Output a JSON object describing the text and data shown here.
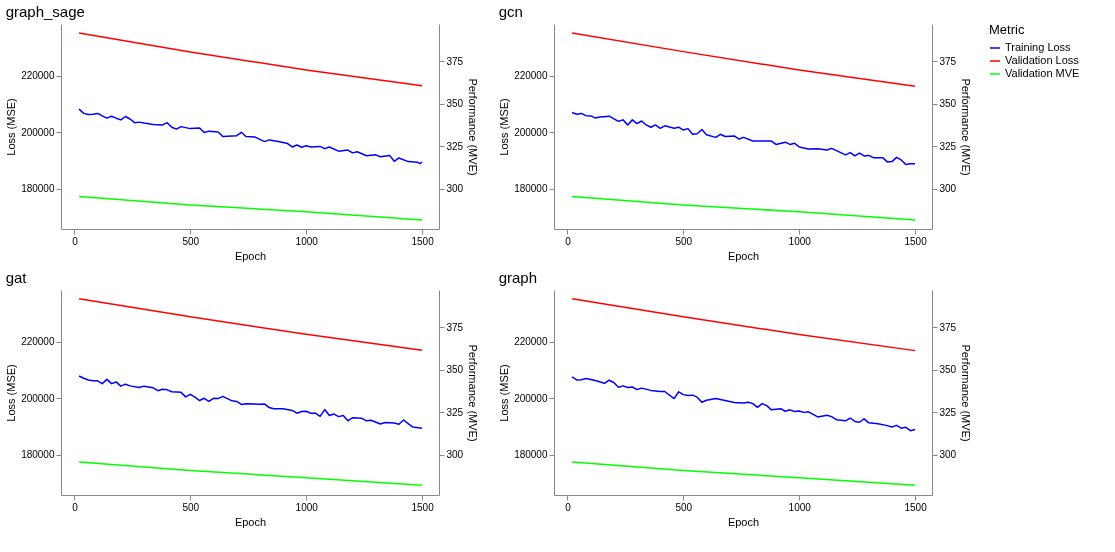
{
  "chart_data": [
    {
      "type": "line",
      "title": "graph_sage",
      "xlabel": "Epoch",
      "ylabel": "Loss (MSE)",
      "y2label": "Performance (MVE)",
      "legend_title": "Metric",
      "legend": "right",
      "grid": false,
      "xlim": [
        -58,
        1573
      ],
      "ylim": [
        165700,
        238400
      ],
      "y2lim": [
        276.2,
        397.0
      ],
      "xticks": [
        0,
        500,
        1000,
        1500
      ],
      "yticks": [
        180000,
        200000,
        220000
      ],
      "y2ticks": [
        300,
        325,
        350,
        375
      ],
      "series": [
        {
          "name": "Training Loss",
          "color": "#0000ff",
          "x": [
            20,
            40,
            60,
            80,
            100,
            120,
            140,
            160,
            180,
            200,
            220,
            240,
            260,
            280,
            300,
            340,
            380,
            400,
            420,
            440,
            460,
            500,
            540,
            560,
            580,
            620,
            640,
            680,
            700,
            720,
            740,
            780,
            820,
            840,
            880,
            920,
            940,
            960,
            980,
            1000,
            1020,
            1060,
            1080,
            1100,
            1140,
            1180,
            1200,
            1220,
            1260,
            1300,
            1320,
            1360,
            1380,
            1400,
            1440,
            1480,
            1490,
            1500
          ],
          "values": [
            208200,
            206700,
            206300,
            206400,
            206700,
            205800,
            205000,
            205700,
            205000,
            204400,
            205600,
            204700,
            203400,
            203600,
            203300,
            202800,
            202600,
            203400,
            201800,
            201100,
            202000,
            201300,
            201500,
            199900,
            200400,
            200100,
            198500,
            198700,
            198800,
            200000,
            198500,
            198300,
            196700,
            197300,
            196700,
            196000,
            194800,
            195500,
            194700,
            195200,
            194800,
            195000,
            194200,
            194800,
            193300,
            193700,
            192700,
            193100,
            191700,
            192000,
            191300,
            191800,
            189700,
            190900,
            189600,
            189400,
            188900,
            189400
          ]
        },
        {
          "name": "Validation Loss",
          "color": "#ff0000",
          "x": [
            20,
            500,
            1000,
            1500
          ],
          "values": [
            235200,
            228500,
            222100,
            216500
          ]
        },
        {
          "name": "Validation MVE",
          "color": "#00ff00",
          "axis": "y2",
          "x": [
            20,
            500,
            1000,
            1500
          ],
          "values": [
            295.3,
            290.4,
            286.3,
            281.5
          ]
        }
      ]
    },
    {
      "type": "line",
      "title": "gcn",
      "xlabel": "Epoch",
      "ylabel": "Loss (MSE)",
      "y2label": "Performance (MVE)",
      "grid": false,
      "xlim": [
        -58,
        1573
      ],
      "ylim": [
        165700,
        238400
      ],
      "y2lim": [
        276.2,
        397.0
      ],
      "xticks": [
        0,
        500,
        1000,
        1500
      ],
      "yticks": [
        180000,
        200000,
        220000
      ],
      "y2ticks": [
        300,
        325,
        350,
        375
      ],
      "series": [
        {
          "color": "#0000ff",
          "x": [
            20,
            40,
            60,
            80,
            100,
            120,
            140,
            180,
            220,
            240,
            260,
            280,
            300,
            320,
            340,
            360,
            380,
            400,
            420,
            460,
            480,
            500,
            520,
            540,
            560,
            580,
            600,
            640,
            660,
            680,
            720,
            740,
            760,
            800,
            880,
            900,
            940,
            960,
            980,
            1000,
            1040,
            1080,
            1120,
            1140,
            1200,
            1220,
            1240,
            1260,
            1280,
            1300,
            1320,
            1360,
            1380,
            1400,
            1420,
            1440,
            1460,
            1480,
            1500
          ],
          "values": [
            207000,
            206400,
            206700,
            205900,
            205800,
            205100,
            205400,
            205700,
            203900,
            204400,
            202600,
            204400,
            203100,
            204000,
            202600,
            201800,
            202600,
            201400,
            202300,
            201400,
            201800,
            200800,
            201300,
            199300,
            199500,
            201000,
            199100,
            198200,
            199300,
            198500,
            198700,
            197600,
            198200,
            196900,
            196900,
            195700,
            196500,
            195700,
            196100,
            194800,
            194100,
            194200,
            193700,
            194300,
            192000,
            192800,
            191600,
            192600,
            191600,
            191800,
            191000,
            191000,
            189500,
            189600,
            191100,
            190200,
            188600,
            188800,
            188800
          ]
        },
        {
          "color": "#ff0000",
          "x": [
            20,
            500,
            1000,
            1500
          ],
          "values": [
            235200,
            228600,
            222100,
            216300
          ]
        },
        {
          "color": "#00ff00",
          "axis": "y2",
          "x": [
            20,
            500,
            1000,
            1500
          ],
          "values": [
            295.3,
            290.4,
            286.3,
            281.5
          ]
        }
      ]
    },
    {
      "type": "line",
      "title": "gat",
      "xlabel": "Epoch",
      "ylabel": "Loss (MSE)",
      "y2label": "Performance (MVE)",
      "grid": false,
      "xlim": [
        -58,
        1573
      ],
      "ylim": [
        165700,
        238400
      ],
      "y2lim": [
        276.2,
        397.0
      ],
      "xticks": [
        0,
        500,
        1000,
        1500
      ],
      "yticks": [
        180000,
        200000,
        220000
      ],
      "y2ticks": [
        300,
        325,
        350,
        375
      ],
      "series": [
        {
          "color": "#0000ff",
          "x": [
            20,
            40,
            60,
            80,
            100,
            120,
            140,
            160,
            180,
            200,
            220,
            240,
            280,
            300,
            340,
            360,
            380,
            400,
            420,
            460,
            480,
            500,
            520,
            540,
            560,
            580,
            600,
            620,
            640,
            660,
            680,
            700,
            720,
            740,
            800,
            820,
            840,
            860,
            900,
            940,
            960,
            980,
            1000,
            1020,
            1040,
            1060,
            1080,
            1100,
            1120,
            1140,
            1160,
            1180,
            1200,
            1240,
            1260,
            1280,
            1320,
            1340,
            1380,
            1400,
            1420,
            1440,
            1460,
            1500
          ],
          "values": [
            207900,
            207100,
            206500,
            206200,
            206200,
            205200,
            206700,
            205200,
            205800,
            204300,
            205000,
            204400,
            203800,
            204300,
            203700,
            202700,
            203200,
            203000,
            202300,
            202100,
            200500,
            201400,
            200400,
            199200,
            200000,
            198900,
            200000,
            199900,
            200700,
            199900,
            199100,
            198900,
            197800,
            198100,
            197900,
            198000,
            196700,
            196300,
            196300,
            195700,
            194700,
            195300,
            195400,
            194700,
            194700,
            193600,
            196000,
            193900,
            194400,
            193500,
            193900,
            192000,
            193100,
            192900,
            192000,
            192200,
            190900,
            191400,
            191200,
            190800,
            192300,
            191000,
            189800,
            189400
          ]
        },
        {
          "color": "#ff0000",
          "x": [
            20,
            500,
            1000,
            1500
          ],
          "values": [
            235300,
            228900,
            222700,
            217000
          ]
        },
        {
          "color": "#00ff00",
          "axis": "y2",
          "x": [
            20,
            500,
            1000,
            1500
          ],
          "values": [
            295.6,
            290.6,
            286.4,
            281.9
          ]
        }
      ]
    },
    {
      "type": "line",
      "title": "graph",
      "xlabel": "Epoch",
      "ylabel": "Loss (MSE)",
      "y2label": "Performance (MVE)",
      "grid": false,
      "xlim": [
        -58,
        1573
      ],
      "ylim": [
        165700,
        238400
      ],
      "y2lim": [
        276.2,
        397.0
      ],
      "xticks": [
        0,
        500,
        1000,
        1500
      ],
      "yticks": [
        180000,
        200000,
        220000
      ],
      "y2ticks": [
        300,
        325,
        350,
        375
      ],
      "series": [
        {
          "color": "#0000ff",
          "x": [
            20,
            40,
            60,
            80,
            120,
            160,
            180,
            200,
            220,
            240,
            260,
            280,
            300,
            320,
            360,
            400,
            420,
            460,
            480,
            500,
            520,
            540,
            560,
            580,
            600,
            640,
            680,
            720,
            760,
            780,
            800,
            820,
            840,
            860,
            880,
            920,
            940,
            960,
            980,
            1000,
            1020,
            1040,
            1080,
            1120,
            1140,
            1160,
            1200,
            1220,
            1240,
            1260,
            1280,
            1300,
            1340,
            1380,
            1400,
            1420,
            1440,
            1460,
            1480,
            1500
          ],
          "values": [
            207600,
            206500,
            206600,
            207000,
            206300,
            205300,
            206400,
            205600,
            203900,
            204400,
            203800,
            204000,
            203100,
            203600,
            202800,
            202400,
            202400,
            199900,
            202300,
            201300,
            201000,
            201100,
            200400,
            198600,
            199300,
            199900,
            199200,
            198500,
            198300,
            198600,
            198100,
            196800,
            198100,
            197400,
            195900,
            196300,
            195400,
            195900,
            195300,
            195500,
            195000,
            195200,
            193400,
            194000,
            193500,
            192400,
            192000,
            193000,
            191800,
            191500,
            192700,
            191300,
            191000,
            190300,
            189800,
            190400,
            189400,
            189700,
            188500,
            188900
          ]
        },
        {
          "color": "#ff0000",
          "x": [
            20,
            500,
            1000,
            1500
          ],
          "values": [
            235300,
            228900,
            222600,
            216900
          ]
        },
        {
          "color": "#00ff00",
          "axis": "y2",
          "x": [
            20,
            500,
            1000,
            1500
          ],
          "values": [
            295.6,
            290.6,
            286.4,
            281.9
          ]
        }
      ]
    }
  ]
}
